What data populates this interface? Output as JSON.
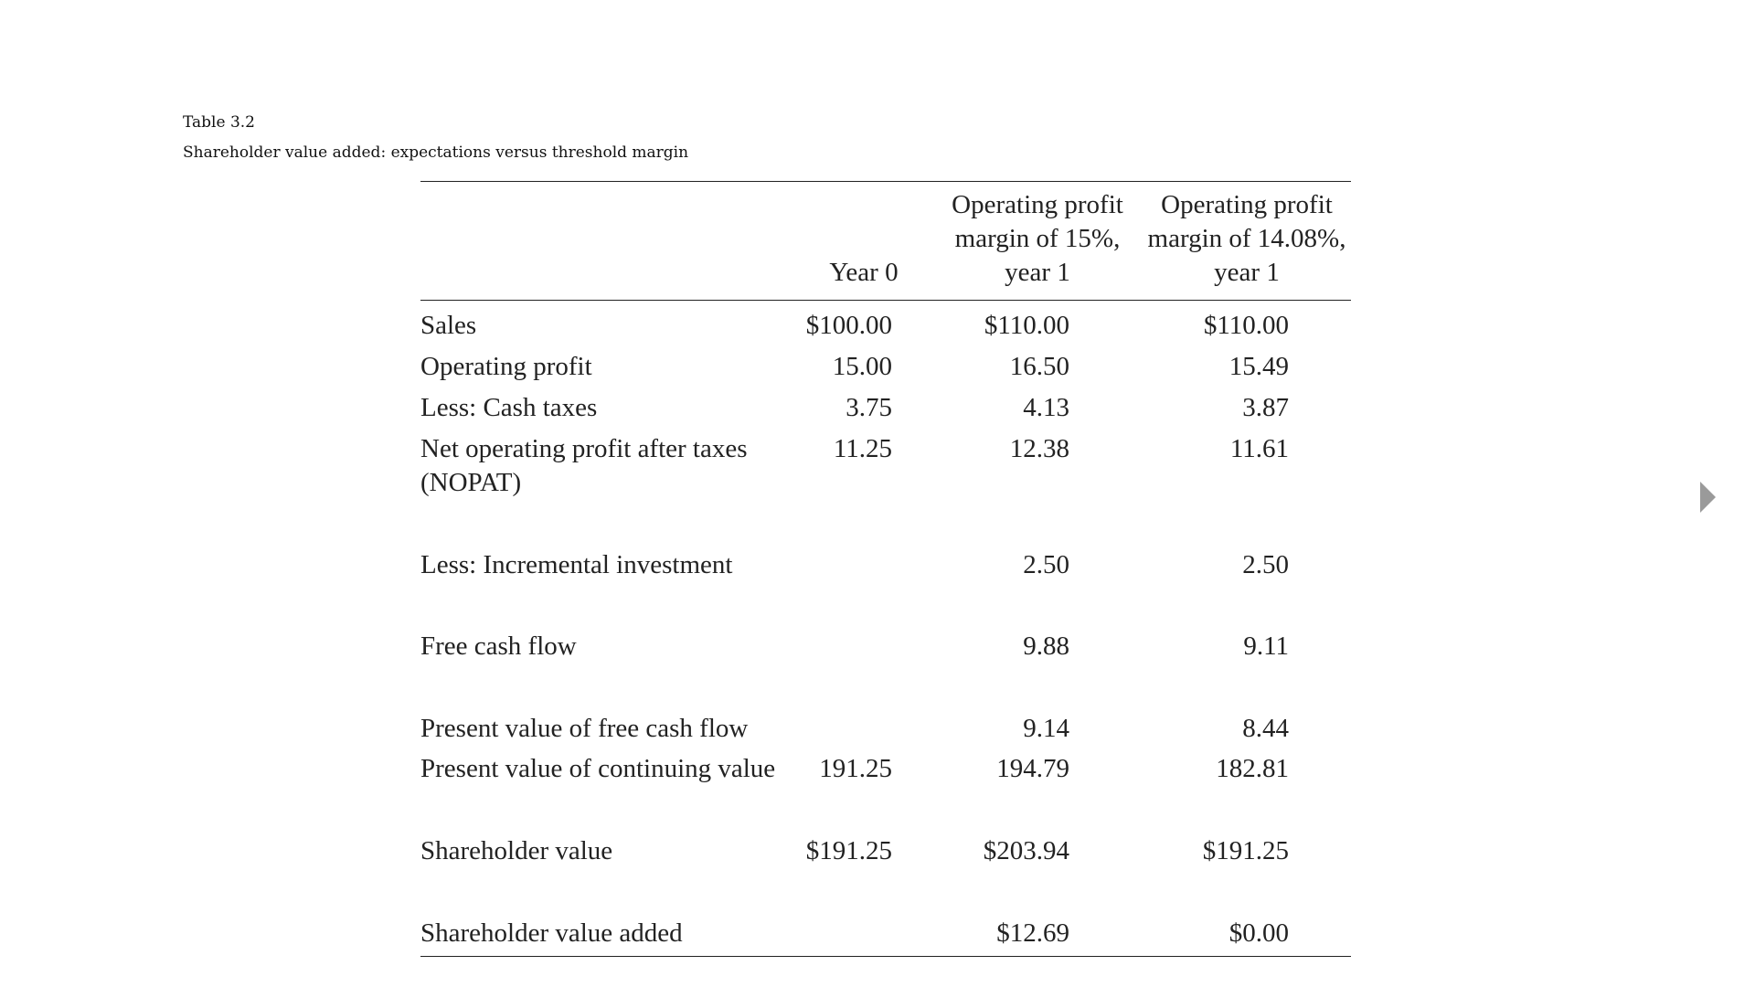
{
  "caption": {
    "label": "Table 3.2",
    "title": "Shareholder value added: expectations versus threshold margin"
  },
  "table": {
    "columns": [
      {
        "lines": [
          "Year 0"
        ]
      },
      {
        "lines": [
          "Operating profit",
          "margin of 15%,",
          "year 1"
        ]
      },
      {
        "lines": [
          "Operating profit",
          "margin of 14.08%,",
          "year 1"
        ]
      }
    ],
    "rows": [
      {
        "label": [
          "Sales"
        ],
        "values": [
          "$100.00",
          "$110.00",
          "$110.00"
        ]
      },
      {
        "label": [
          "Operating profit"
        ],
        "values": [
          "15.00",
          "16.50",
          "15.49"
        ]
      },
      {
        "label": [
          "Less: Cash taxes"
        ],
        "values": [
          "3.75",
          "4.13",
          "3.87"
        ]
      },
      {
        "label": [
          "Net operating profit after taxes",
          "(NOPAT)"
        ],
        "values": [
          "11.25",
          "12.38",
          "11.61"
        ]
      },
      {
        "label": [
          "Less: Incremental investment"
        ],
        "values": [
          "",
          "2.50",
          "2.50"
        ]
      },
      {
        "label": [
          "Free cash flow"
        ],
        "values": [
          "",
          "9.88",
          "9.11"
        ]
      },
      {
        "label": [
          "Present value of free cash flow"
        ],
        "values": [
          "",
          "9.14",
          "8.44"
        ]
      },
      {
        "label": [
          "Present value of continuing value"
        ],
        "values": [
          "191.25",
          "194.79",
          "182.81"
        ]
      },
      {
        "label": [
          "Shareholder value"
        ],
        "values": [
          "$191.25",
          "$203.94",
          "$191.25"
        ]
      },
      {
        "label": [
          "Shareholder value added"
        ],
        "values": [
          "",
          "$12.69",
          "$0.00"
        ]
      }
    ]
  },
  "navigation": {
    "next_icon": "triangle-right-icon",
    "icon_color": "#9a9a9a"
  }
}
